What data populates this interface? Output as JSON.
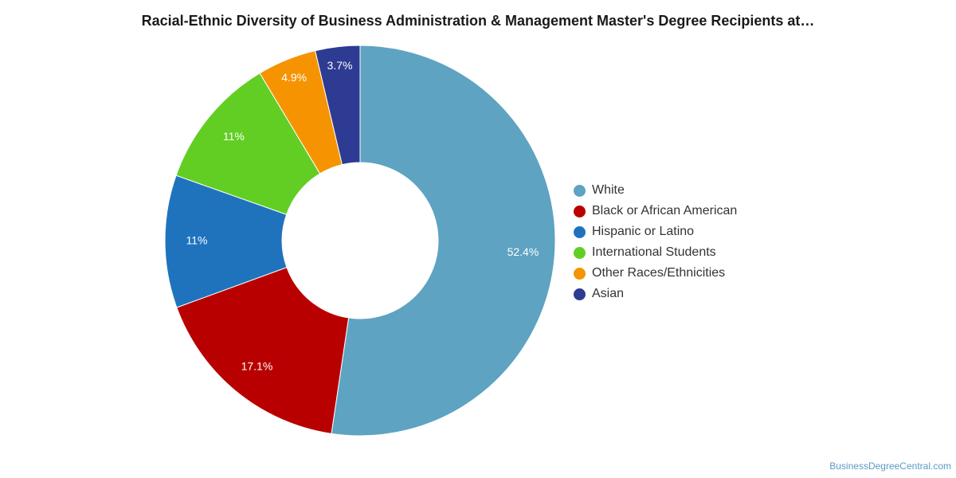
{
  "chart_data": {
    "type": "pie",
    "title": "Racial-Ethnic Diversity of Business Administration & Management Master's Degree Recipients at…",
    "legend_position": "right",
    "slices": [
      {
        "name": "White",
        "value": 52.4,
        "label": "52.4%",
        "color": "#5ea3c1"
      },
      {
        "name": "Black or African American",
        "value": 17.1,
        "label": "17.1%",
        "color": "#b90000"
      },
      {
        "name": "Hispanic or Latino",
        "value": 11,
        "label": "11%",
        "color": "#1f73bd"
      },
      {
        "name": "International Students",
        "value": 11,
        "label": "11%",
        "color": "#62ce23"
      },
      {
        "name": "Other Races/Ethnicities",
        "value": 4.9,
        "label": "4.9%",
        "color": "#f59400"
      },
      {
        "name": "Asian",
        "value": 3.7,
        "label": "3.7%",
        "color": "#2d3b92"
      }
    ]
  },
  "watermark": "BusinessDegreeCentral.com"
}
